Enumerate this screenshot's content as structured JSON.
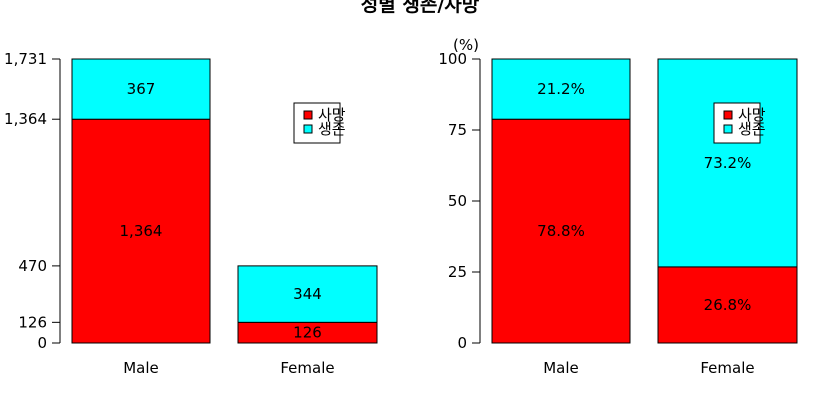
{
  "title": "성별 생존/사망",
  "chart_data": [
    {
      "type": "bar",
      "stacked": true,
      "categories": [
        "Male",
        "Female"
      ],
      "series": [
        {
          "name": "사망",
          "color": "#ff0000",
          "values": [
            1364,
            126
          ]
        },
        {
          "name": "생존",
          "color": "#00ffff",
          "values": [
            367,
            344
          ]
        }
      ],
      "data_labels": [
        [
          "1,364",
          "126"
        ],
        [
          "367",
          "344"
        ]
      ],
      "ylim": [
        0,
        1731
      ],
      "yticks": [
        0,
        126,
        470,
        1364,
        1731
      ],
      "ytick_labels": [
        "0",
        "126",
        "470",
        "1,364",
        "1,731"
      ],
      "legend_position": "right",
      "grid": false
    },
    {
      "type": "bar",
      "stacked": true,
      "percent": true,
      "categories": [
        "Male",
        "Female"
      ],
      "series": [
        {
          "name": "사망",
          "color": "#ff0000",
          "values": [
            78.8,
            26.8
          ]
        },
        {
          "name": "생존",
          "color": "#00ffff",
          "values": [
            21.2,
            73.2
          ]
        }
      ],
      "data_labels": [
        [
          "78.8%",
          "26.8%"
        ],
        [
          "21.2%",
          "73.2%"
        ]
      ],
      "ylabel": "(%)",
      "ylim": [
        0,
        100
      ],
      "yticks": [
        0,
        25,
        50,
        75,
        100
      ],
      "ytick_labels": [
        "0",
        "25",
        "50",
        "75",
        "100"
      ],
      "legend_position": "right",
      "grid": false
    }
  ]
}
